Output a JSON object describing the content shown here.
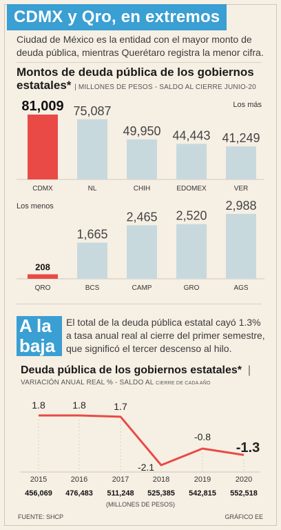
{
  "headline": "CDMX y Qro, en extremos",
  "dek": "Ciudad de México es la entidad con el mayor monto de deuda pública, mientras Querétaro registra la menor cifra.",
  "chart1": {
    "title": "Montos de deuda pública de los gobiernos estatales*",
    "subtitle": "| MILLONES DE PESOS - SALDO AL CIERRE JUNIO-20"
  },
  "chart_data": [
    {
      "type": "bar",
      "group_label": "Los más",
      "categories": [
        "CDMX",
        "NL",
        "CHIH",
        "EDOMEX",
        "VER"
      ],
      "values": [
        81009,
        75087,
        49950,
        44443,
        41249
      ],
      "value_labels": [
        "81,009",
        "75,087",
        "49,950",
        "44,443",
        "41,249"
      ],
      "highlight_index": 0,
      "colors": {
        "bar": "#c8d9de",
        "highlight": "#e94a46"
      }
    },
    {
      "type": "bar",
      "group_label": "Los menos",
      "categories": [
        "QRO",
        "BCS",
        "CAMP",
        "GRO",
        "AGS"
      ],
      "values": [
        208,
        1665,
        2465,
        2520,
        2988
      ],
      "value_labels": [
        "208",
        "1,665",
        "2,465",
        "2,520",
        "2,988"
      ],
      "highlight_index": 0,
      "colors": {
        "bar": "#c8d9de",
        "highlight": "#e94a46"
      }
    },
    {
      "type": "line",
      "title": "Deuda pública de los gobiernos estatales*",
      "x": [
        "2015",
        "2016",
        "2017",
        "2018",
        "2019",
        "2020"
      ],
      "values": [
        1.8,
        1.8,
        1.7,
        -2.1,
        -0.8,
        -1.3
      ],
      "value_labels": [
        "1.8",
        "1.8",
        "1.7",
        "-2.1",
        "-0.8",
        "-1.3"
      ],
      "totals": [
        "456,069",
        "476,483",
        "511,248",
        "525,385",
        "542,815",
        "552,518"
      ],
      "totals_unit": "(MILLONES DE PESOS)",
      "colors": {
        "line": "#e94a46"
      }
    }
  ],
  "section2": {
    "tag_line1": "A la",
    "tag_line2": "baja",
    "text": "El total de la deuda pública estatal cayó 1.3% a tasa anual real al cierre del primer semestre, que significó el tercer descenso al hilo.",
    "chart_title": "Deuda pública de los gobiernos estatales*",
    "chart_sub_main": "VARIACIÓN ANUAL REAL % - SALDO AL",
    "chart_sub_small": "CIERRE DE CADA AÑO"
  },
  "footer": {
    "source": "FUENTE: SHCP",
    "credit": "GRÁFICO EE"
  }
}
